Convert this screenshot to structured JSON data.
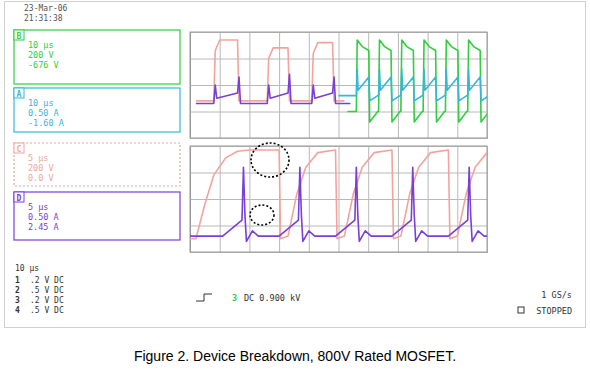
{
  "header": {
    "date": "23-Mar-06",
    "time": "21:31:38"
  },
  "channels": [
    {
      "label": "B",
      "color": "#2fcf3f",
      "line_style": "solid",
      "lines": [
        "10 µs",
        "200 V",
        "-676 V"
      ]
    },
    {
      "label": "A",
      "color": "#35b8d8",
      "line_style": "solid",
      "lines": [
        "10 µs",
        "0.50 A",
        "-1.60 A"
      ]
    },
    {
      "label": "C",
      "color": "#f2a49c",
      "line_style": "dotted",
      "lines": [
        "5 µs",
        "200 V",
        "0.0 V"
      ]
    },
    {
      "label": "D",
      "color": "#7a3fd6",
      "line_style": "solid",
      "lines": [
        "5 µs",
        "0.50 A",
        "2.45 A"
      ]
    }
  ],
  "chart_data": [
    {
      "type": "line",
      "xlim": [
        0,
        10
      ],
      "ylim": [
        -2,
        2
      ],
      "xticks": [
        0,
        1,
        2,
        3,
        4,
        5,
        6,
        7,
        8,
        9,
        10
      ],
      "yticks": [
        -2,
        -1,
        0,
        1,
        2
      ],
      "grid": true,
      "tick_labels": false,
      "series": [
        {
          "color": "#f2a49c",
          "x": [
            0.2,
            0.8,
            0.85,
            1.0,
            1.6,
            1.65,
            2.6,
            2.65,
            2.8,
            3.3,
            3.35,
            4.1,
            4.15,
            4.3,
            4.8,
            4.85,
            5.2
          ],
          "values": [
            -0.6,
            -0.6,
            1.3,
            1.7,
            1.7,
            -0.6,
            -0.6,
            1.0,
            1.4,
            1.4,
            -0.6,
            -0.6,
            1.2,
            1.6,
            1.6,
            -0.6,
            -0.6
          ]
        },
        {
          "color": "#7a3fd6",
          "x": [
            0.2,
            0.8,
            0.85,
            0.9,
            1.6,
            1.65,
            1.7,
            2.6,
            2.65,
            2.7,
            3.3,
            3.35,
            3.4,
            4.1,
            4.15,
            4.2,
            4.8,
            4.85,
            4.9,
            5.4
          ],
          "values": [
            -0.7,
            -0.7,
            0.0,
            -0.5,
            -0.3,
            0.3,
            -0.7,
            -0.7,
            0.0,
            -0.5,
            -0.3,
            0.4,
            -0.7,
            -0.7,
            0.0,
            -0.5,
            -0.3,
            0.3,
            -0.7,
            -0.7
          ]
        },
        {
          "color": "#2fcf3f",
          "x": [
            5.3,
            5.6,
            5.63,
            5.8,
            6.02,
            6.05,
            6.32,
            6.35,
            6.38,
            6.55,
            6.77,
            6.8,
            7.07,
            7.1,
            7.13,
            7.3,
            7.52,
            7.55,
            7.82,
            7.85,
            7.88,
            8.05,
            8.27,
            8.3,
            8.57,
            8.6,
            8.63,
            8.8,
            9.02,
            9.05,
            9.32,
            9.35,
            9.38,
            9.55,
            9.77,
            9.8,
            10.07
          ],
          "values": [
            -1.0,
            -1.0,
            1.7,
            1.45,
            1.3,
            -1.4,
            -1.0,
            -1.0,
            1.7,
            1.45,
            1.3,
            -1.4,
            -1.0,
            -1.0,
            1.7,
            1.45,
            1.3,
            -1.4,
            -1.0,
            -1.0,
            1.7,
            1.45,
            1.3,
            -1.4,
            -1.0,
            -1.0,
            1.7,
            1.45,
            1.3,
            -1.4,
            -1.0,
            -1.0,
            1.7,
            1.45,
            1.3,
            -1.4,
            -1.0
          ]
        },
        {
          "color": "#35b8d8",
          "x": [
            5.0,
            5.6,
            5.63,
            5.66,
            6.02,
            6.05,
            6.32,
            6.35,
            6.38,
            6.41,
            6.77,
            6.8,
            7.07,
            7.1,
            7.13,
            7.16,
            7.52,
            7.55,
            7.82,
            7.85,
            7.88,
            7.91,
            8.27,
            8.3,
            8.57,
            8.6,
            8.63,
            8.66,
            9.02,
            9.05,
            9.32,
            9.35,
            9.38,
            9.41,
            9.77,
            9.8,
            10.07
          ],
          "values": [
            -0.4,
            -0.4,
            0.6,
            -0.2,
            0.3,
            -0.6,
            -0.4,
            -0.4,
            0.6,
            -0.2,
            0.3,
            -0.6,
            -0.4,
            -0.4,
            0.6,
            -0.2,
            0.3,
            -0.6,
            -0.4,
            -0.4,
            0.6,
            -0.2,
            0.3,
            -0.6,
            -0.4,
            -0.4,
            0.6,
            -0.2,
            0.3,
            -0.6,
            -0.4,
            -0.4,
            0.6,
            -0.2,
            0.3,
            -0.6,
            -0.4
          ]
        }
      ]
    },
    {
      "type": "line",
      "xlim": [
        0,
        10
      ],
      "ylim": [
        -2,
        2
      ],
      "xticks": [
        0,
        1,
        2,
        3,
        4,
        5,
        6,
        7,
        8,
        9,
        10
      ],
      "yticks": [
        -2,
        -1,
        0,
        1,
        2
      ],
      "grid": true,
      "tick_labels": false,
      "series": [
        {
          "color": "#f2a49c",
          "x": [
            0,
            0.2,
            0.5,
            0.8,
            1.2,
            1.6,
            2.0,
            3.0,
            3.05,
            3.3,
            3.6,
            3.9,
            4.3,
            4.9,
            4.95,
            5.2,
            5.5,
            5.8,
            6.2,
            6.8,
            6.85,
            7.1,
            7.4,
            7.7,
            8.1,
            8.7,
            8.75,
            9.0,
            9.3,
            9.6,
            10
          ],
          "values": [
            -1.5,
            -1.5,
            -0.2,
            0.9,
            1.55,
            1.8,
            1.85,
            1.85,
            -1.5,
            -1.4,
            0.2,
            1.2,
            1.75,
            1.85,
            -1.5,
            -1.4,
            0.2,
            1.2,
            1.75,
            1.85,
            -1.5,
            -1.4,
            0.2,
            1.2,
            1.75,
            1.85,
            -1.5,
            -1.4,
            0.2,
            1.2,
            1.75
          ]
        },
        {
          "color": "#7a3fd6",
          "x": [
            0,
            1.1,
            1.75,
            1.8,
            1.85,
            1.9,
            2.1,
            2.3,
            3.0,
            3.65,
            3.7,
            3.75,
            3.8,
            4.0,
            4.2,
            4.9,
            5.55,
            5.6,
            5.65,
            5.7,
            5.9,
            6.1,
            6.8,
            7.45,
            7.5,
            7.55,
            7.6,
            7.8,
            8.0,
            8.7,
            9.35,
            9.4,
            9.45,
            9.5,
            9.7,
            9.9,
            10
          ],
          "values": [
            -1.4,
            -1.4,
            -0.8,
            1.2,
            -0.6,
            -1.6,
            -1.2,
            -1.4,
            -1.4,
            -0.8,
            1.2,
            -0.6,
            -1.6,
            -1.2,
            -1.4,
            -1.4,
            -0.8,
            1.2,
            -0.6,
            -1.6,
            -1.2,
            -1.4,
            -1.4,
            -0.8,
            1.2,
            -0.6,
            -1.6,
            -1.2,
            -1.4,
            -1.4,
            -0.8,
            1.2,
            -0.6,
            -1.6,
            -1.2,
            -1.4,
            -1.4
          ]
        }
      ]
    }
  ],
  "footer": {
    "timebase": "10 µs",
    "rows": [
      {
        "channel": "1",
        "setting": ".2 V DC"
      },
      {
        "channel": "2",
        "setting": ".5 V DC"
      },
      {
        "channel": "3",
        "setting": ".2 V DC"
      },
      {
        "channel": "4",
        "setting": ".5 V DC"
      }
    ],
    "trigger_channel": "3",
    "trigger": "DC 0.900 kV",
    "sample_rate": "1 GS/s",
    "status": "STOPPED"
  },
  "caption": "Figure 2. Device Breakdown, 800V Rated MOSFET."
}
